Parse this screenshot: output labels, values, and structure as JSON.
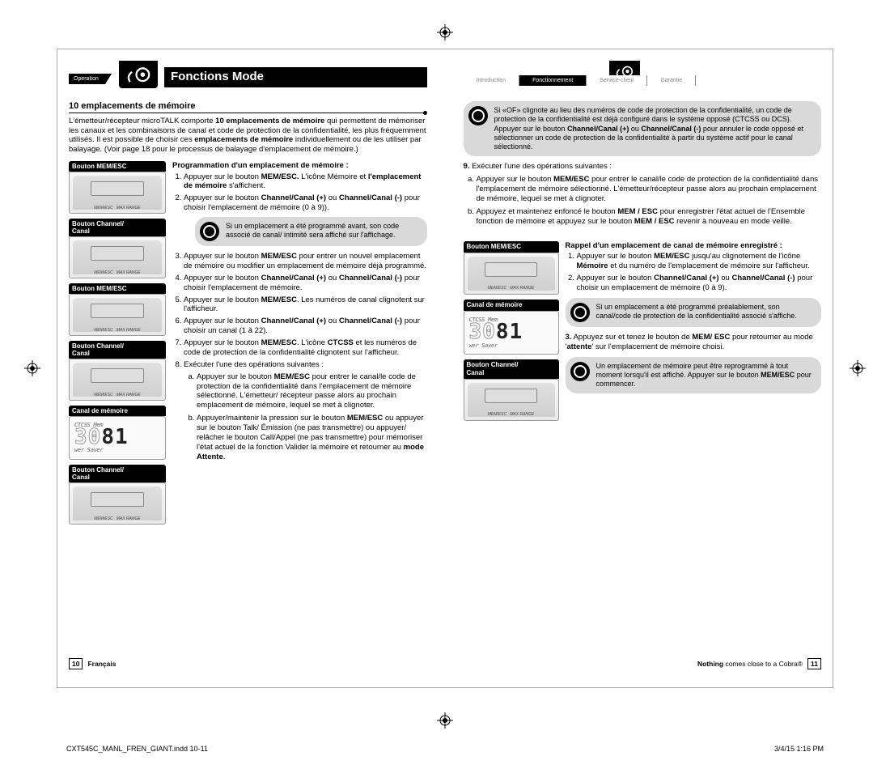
{
  "print": {
    "filename": "CXT545C_MANL_FREN_GIANT.indd   10-11",
    "timestamp": "3/4/15   1:16 PM"
  },
  "left": {
    "op_tab": "Operation",
    "title": "Fonctions Mode",
    "section_head": "10 emplacements de mémoire",
    "intro": "L'émetteur/récepteur microTALK comporte <b>10 emplacements de mémoire</b> qui permettent de mémoriser les canaux et les combinaisons de canal et code de protection de la confidentialité, les plus fréquemment utilisés. Il est possible de choisir ces <b>emplacements de mémoire</b> individuellement ou de les utiliser par balayage. (Voir page 18 pour le processus de balayage d'emplacement de mémoire.)",
    "images": [
      {
        "label": "Bouton MEM/ESC",
        "type": "device"
      },
      {
        "label": "Bouton Channel/\nCanal",
        "type": "device"
      },
      {
        "label": "Bouton MEM/ESC",
        "type": "device"
      },
      {
        "label": "Bouton Channel/\nCanal",
        "type": "device"
      },
      {
        "label": "Canal de mémoire",
        "type": "lcd"
      },
      {
        "label": "Bouton Channel/\nCanal",
        "type": "device"
      }
    ],
    "prog_head": "Programmation d'un emplacement de mémoire :",
    "steps": [
      "Appuyer sur le bouton <b>MEM/ESC.</b> L'icône Mémoire et <b>l'emplacement de mémoire</b> s'affichent.",
      "Appuyer sur le bouton <b>Channel/Canal (+)</b> ou <b>Channel/Canal (-)</b> pour choisir l'emplacement de mémoire (0 à 9)).",
      "Appuyer sur le bouton <b>MEM/ESC</b> pour entrer un nouvel emplacement de mémoire ou modifier un emplacement de mémoire déjà programmé.",
      "Appuyer sur le bouton <b>Channel/Canal (+)</b> ou <b>Channel/Canal (-)</b> pour choisir l'emplacement de mémoire.",
      "Appuyer sur le bouton <b>MEM/ESC</b>. Les numéros de canal clignotent sur l'afficheur.",
      "Appuyer sur le bouton <b>Channel/Canal (+)</b> ou <b>Channel/Canal (-)</b> pour choisir un canal (1 à 22).",
      "Appuyer sur le bouton <b>MEM/ESC</b>. L'icône <b>CTCSS</b> et les numéros de code de protection de la confidentialité clignotent sur l'afficheur.",
      "Exécuter l'une des opérations suivantes :"
    ],
    "note_after_2": "Si un emplacement a été programmé avant, son code associé de canal/ intimité sera affiché sur l'affichage.",
    "sub_steps": [
      "Appuyer sur le bouton <b>MEM/ESC</b> pour entrer le canal/le code de protection de la confidentialité dans l'emplacement de mémoire sélectionné. L'émetteur/ récepteur passe alors au prochain emplacement de mémoire, lequel se met à clignoter.",
      "Appuyer/maintenir la pression sur le bouton <b>MEM/ESC</b> ou appuyer sur le bouton Talk/ Émission (ne pas transmettre) ou appuyer/ relâcher le bouton Call/Appel (ne pas transmettre) pour mémoriser l'état actuel de la fonction Valider la mémoire et retourner au <b>mode Attente</b>."
    ],
    "footer_lang": "Français",
    "page_num": "10"
  },
  "right": {
    "tabs": [
      "Introduction",
      "Fonctionnement",
      "Service-client",
      "Garantie"
    ],
    "active_tab": 1,
    "top_note": "Si «OF» clignote au lieu des numéros de code de protection de la confidentialité, un code de protection de la confidentialité est déjà configuré dans le système opposé (CTCSS ou DCS). Appuyer sur le bouton <b>Channel/Canal (+)</b> ou <b>Channel/Canal (-)</b> pour annuler le code opposé et sélectionner un code de protection de la confidentialité à partir du système actif pour le canal sélectionné.",
    "step9": "Exécuter l'une des opérations suivantes :",
    "sub9": [
      "Appuyer sur le bouton <b>MEM/ESC</b> pour entrer le canal/le code de protection de la confidentialité dans l'emplacement de mémoire sélectionné. L'émetteur/récepteur passe alors au prochain emplacement de mémoire, lequel se met à clignoter.",
      "Appuyez et maintenez enfoncé le bouton <b>MEM / ESC</b> pour enregistrer l'état actuel de l'Ensemble fonction de mémoire et appuyez sur le bouton <b>MEM / ESC</b> revenir à nouveau en mode veille."
    ],
    "recall_head": "Rappel d'un emplacement de canal de mémoire enregistré :",
    "images": [
      {
        "label": "Bouton MEM/ESC",
        "type": "device"
      },
      {
        "label": "Canal de mémoire",
        "type": "lcd"
      },
      {
        "label": "Bouton Channel/\nCanal",
        "type": "device"
      }
    ],
    "recall_steps": [
      "Appuyer sur le bouton <b>MEM/ESC</b> jusqu'au clignotement de l'icône <b>Mémoire</b> et du numéro de l'emplacement de mémoire sur l'afficheur.",
      "Appuyer sur le bouton <b>Channel/Canal (+)</b> ou <b>Channel/Canal (-)</b> pour choisir un emplacement de mémoire (0 à 9)."
    ],
    "recall_note": "Si un emplacement a été programmé préalablement, son canal/code de protection de la confidentialité associé s'affiche.",
    "recall_step3": "Appuyez sur et tenez le bouton de <b>MEM/ ESC</b> pour retourner au mode '<b>attente</b>' sur l'emplacement de mémoire choisi.",
    "bottom_note": "Un emplacement de mémoire peut être reprogrammé à tout moment lorsqu'il est affiché. Appuyer sur le bouton <b>MEM/ESC</b> pour commencer.",
    "footer_tag": "<b>Nothing</b> comes close to a Cobra®",
    "page_num": "11"
  },
  "lcd": {
    "line1": "CTCSS  Mem",
    "digits_outline": "3",
    "digits_thin": "0",
    "digits_bold": "81",
    "line2": "wer Saver"
  }
}
